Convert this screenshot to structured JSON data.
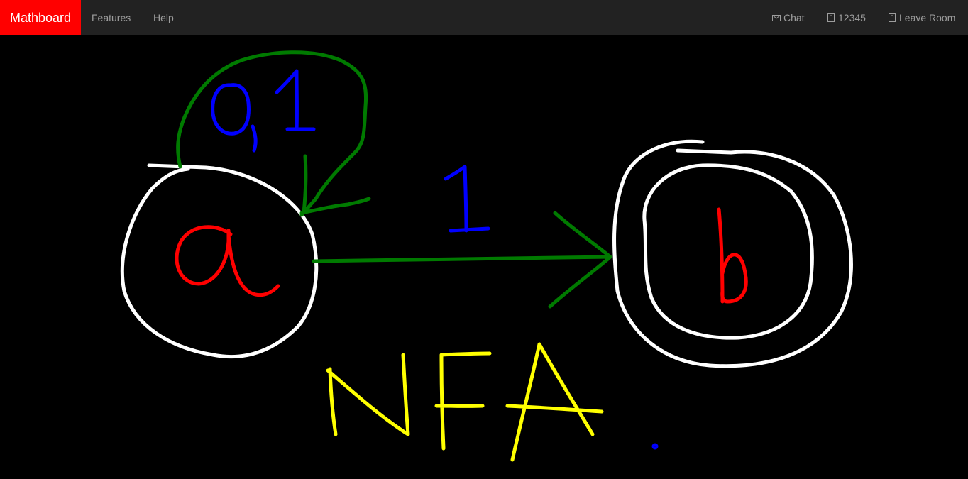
{
  "navbar": {
    "brand": "Mathboard",
    "left_items": [
      "Features",
      "Help"
    ],
    "right_items": [
      "Chat",
      "12345",
      "Leave Room"
    ]
  }
}
